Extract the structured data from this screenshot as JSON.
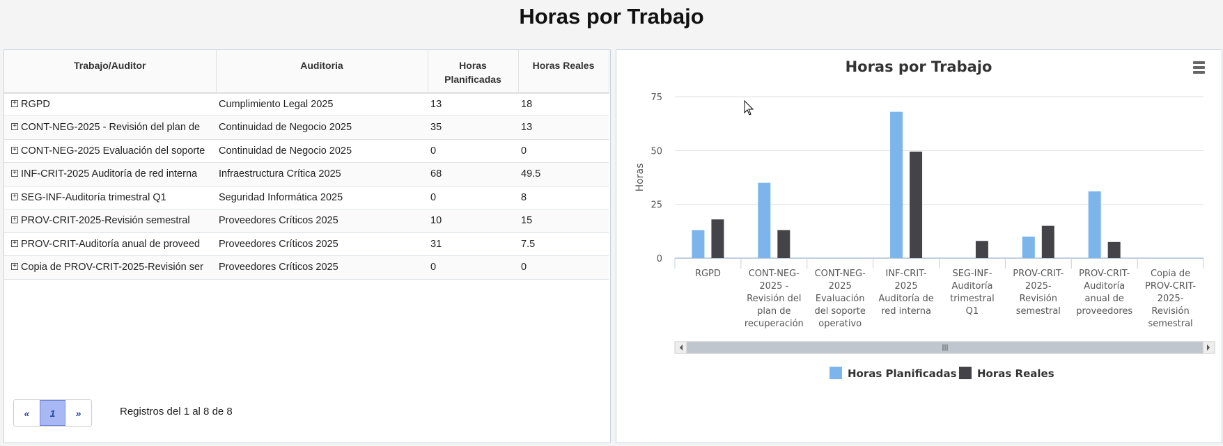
{
  "page_title": "Horas por Trabajo",
  "table": {
    "headers": [
      "Trabajo/Auditor",
      "Auditoria",
      "Horas Planificadas",
      "Horas Reales"
    ],
    "rows": [
      [
        "RGPD",
        "Cumplimiento Legal 2025",
        "13",
        "18"
      ],
      [
        "CONT-NEG-2025 - Revisión del plan de",
        "Continuidad de Negocio 2025",
        "35",
        "13"
      ],
      [
        "CONT-NEG-2025 Evaluación del soporte",
        "Continuidad de Negocio 2025",
        "0",
        "0"
      ],
      [
        "INF-CRIT-2025 Auditoría de red interna",
        "Infraestructura Crítica 2025",
        "68",
        "49.5"
      ],
      [
        "SEG-INF-Auditoría trimestral Q1",
        "Seguridad Informática 2025",
        "0",
        "8"
      ],
      [
        "PROV-CRIT-2025-Revisión semestral",
        "Proveedores Críticos 2025",
        "10",
        "15"
      ],
      [
        "PROV-CRIT-Auditoría anual de proveed",
        "Proveedores Críticos 2025",
        "31",
        "7.5"
      ],
      [
        "Copia de PROV-CRIT-2025-Revisión ser",
        "Proveedores Críticos 2025",
        "0",
        "0"
      ]
    ],
    "pager": {
      "prev": "«",
      "page": "1",
      "next": "»"
    },
    "records": "Registros del 1 al 8 de 8"
  },
  "chart_data": {
    "type": "bar",
    "title": "Horas por Trabajo",
    "ylabel": "Horas",
    "ylim": [
      0,
      75
    ],
    "yticks": [
      0,
      25,
      50,
      75
    ],
    "grid": true,
    "legend": "bottom",
    "categories": [
      [
        "RGPD"
      ],
      [
        "CONT-NEG-",
        "2025 -",
        "Revisión del",
        "plan de",
        "recuperación"
      ],
      [
        "CONT-NEG-",
        "2025",
        "Evaluación",
        "del soporte",
        "operativo"
      ],
      [
        "INF-CRIT-",
        "2025",
        "Auditoría de",
        "red interna"
      ],
      [
        "SEG-INF-",
        "Auditoría",
        "trimestral",
        "Q1"
      ],
      [
        "PROV-CRIT-",
        "2025-",
        "Revisión",
        "semestral"
      ],
      [
        "PROV-CRIT-",
        "Auditoría",
        "anual de",
        "proveedores"
      ],
      [
        "Copia de",
        "PROV-CRIT-",
        "2025-",
        "Revisión",
        "semestral"
      ]
    ],
    "series": [
      {
        "name": "Horas Planificadas",
        "color": "#7cb5ec",
        "values": [
          13,
          35,
          0,
          68,
          0,
          10,
          31,
          0
        ]
      },
      {
        "name": "Horas Reales",
        "color": "#434348",
        "values": [
          18,
          13,
          0,
          49.5,
          8,
          15,
          7.5,
          0
        ]
      }
    ],
    "menu_icon": "hamburger-menu-icon"
  }
}
